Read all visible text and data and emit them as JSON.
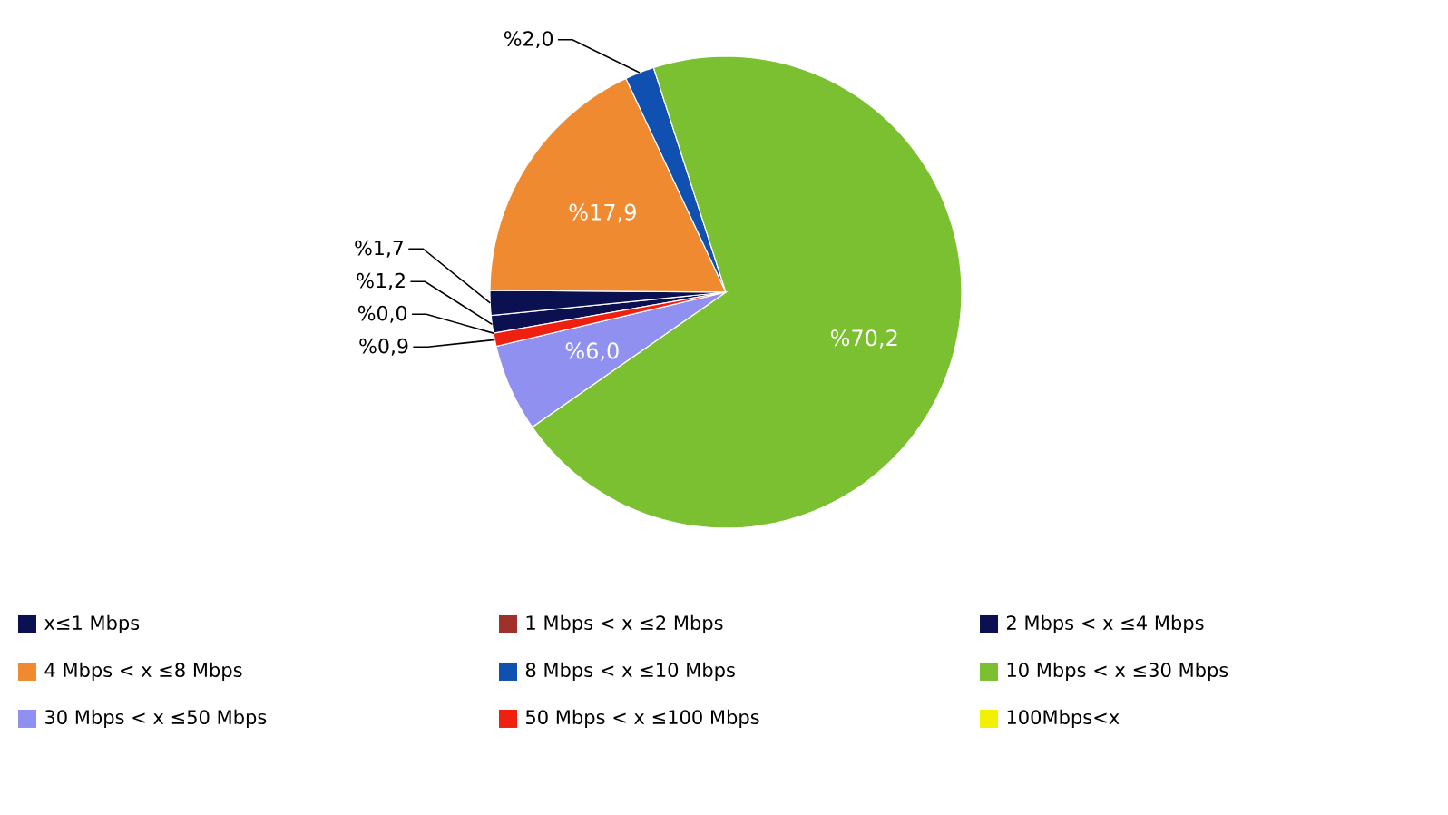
{
  "chart_data": {
    "type": "pie",
    "categories": [
      "x≤1 Mbps",
      "1 Mbps < x ≤2 Mbps",
      "2 Mbps < x ≤4 Mbps",
      "4 Mbps < x ≤8 Mbps",
      "8 Mbps < x ≤10 Mbps",
      "10 Mbps < x ≤30 Mbps",
      "30 Mbps < x ≤50 Mbps",
      "50 Mbps < x ≤100 Mbps",
      "100Mbps<x"
    ],
    "values": [
      1.2,
      0,
      1.7,
      17.9,
      2.0,
      70.2,
      6.0,
      0.9,
      0.0
    ],
    "value_labels": [
      "%1,2",
      null,
      "%1,7",
      "%17,9",
      "%2,0",
      "%70,2",
      "%6,0",
      "%0,9",
      "%0,0"
    ],
    "colors": [
      "#0a1050",
      "#a0302a",
      "#0a1050",
      "#f08a30",
      "#1050b0",
      "#7ac030",
      "#9090f0",
      "#f02010",
      "#f0f000"
    ],
    "legend": "bottom"
  }
}
